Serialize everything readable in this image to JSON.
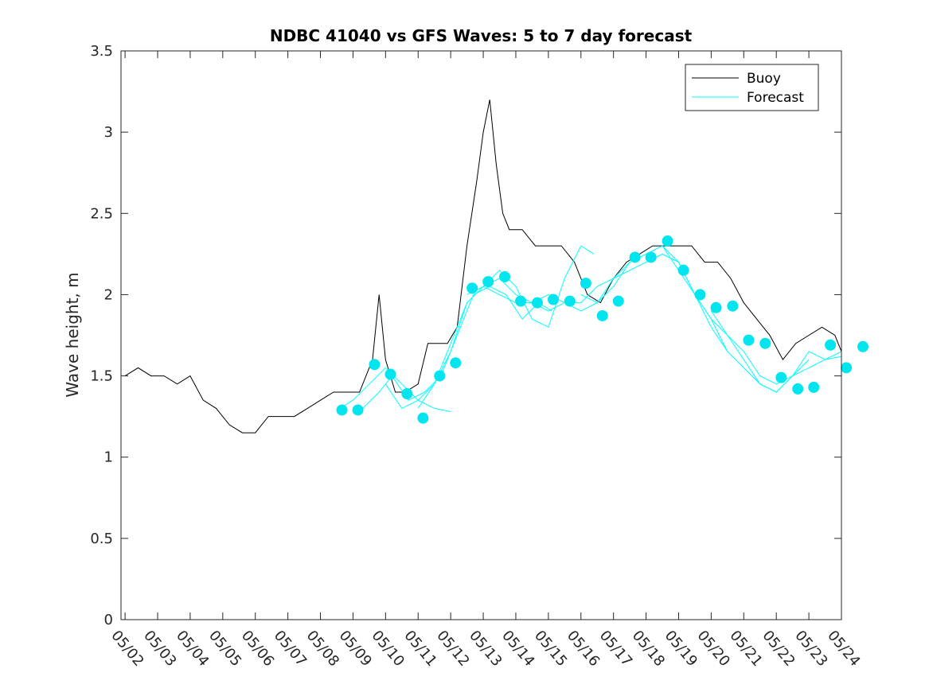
{
  "chart_data": {
    "type": "line",
    "title": "NDBC 41040 vs GFS Waves: 5 to 7 day forecast",
    "xlabel": "",
    "ylabel": "Wave height, m",
    "x_range": [
      "05/01 21:00",
      "05/24"
    ],
    "ylim": [
      0,
      3.5
    ],
    "y_ticks": [
      "0",
      "0.5",
      "1",
      "1.5",
      "2",
      "2.5",
      "3",
      "3.5"
    ],
    "x_tick_labels": [
      "05/02",
      "05/03",
      "05/04",
      "05/05",
      "05/06",
      "05/07",
      "05/08",
      "05/09",
      "05/10",
      "05/11",
      "05/12",
      "05/13",
      "05/14",
      "05/15",
      "05/16",
      "05/17",
      "05/18",
      "05/19",
      "05/20",
      "05/21",
      "05/22",
      "05/23",
      "05/24"
    ],
    "grid": false,
    "legend": {
      "position": "top-right",
      "entries": [
        "Buoy",
        "Forecast"
      ]
    },
    "colors": {
      "buoy": "#000000",
      "forecast": "#00ffff",
      "marker": "#00e5ee",
      "axis": "#262626"
    },
    "series": [
      {
        "name": "Buoy",
        "x": [
          1.0,
          1.4,
          1.8,
          2.2,
          2.6,
          3.0,
          3.4,
          3.8,
          4.2,
          4.6,
          5.0,
          5.4,
          5.8,
          6.2,
          6.6,
          7.0,
          7.4,
          7.8,
          8.2,
          8.6,
          8.8,
          9.0,
          9.3,
          9.6,
          10.0,
          10.3,
          10.6,
          10.9,
          11.2,
          11.5,
          11.8,
          12.0,
          12.2,
          12.4,
          12.6,
          12.8,
          13.2,
          13.6,
          14.0,
          14.4,
          14.8,
          15.2,
          15.6,
          16.0,
          16.4,
          16.8,
          17.2,
          17.6,
          18.0,
          18.4,
          18.8,
          19.2,
          19.6,
          20.0,
          20.4,
          20.8,
          21.2,
          21.6,
          22.0,
          22.4,
          22.8,
          23.0
        ],
        "y": [
          1.5,
          1.55,
          1.5,
          1.5,
          1.45,
          1.5,
          1.35,
          1.3,
          1.2,
          1.15,
          1.15,
          1.25,
          1.25,
          1.25,
          1.3,
          1.35,
          1.4,
          1.4,
          1.4,
          1.6,
          2.0,
          1.6,
          1.4,
          1.4,
          1.45,
          1.7,
          1.7,
          1.7,
          1.8,
          2.3,
          2.7,
          3.0,
          3.2,
          2.8,
          2.5,
          2.4,
          2.4,
          2.3,
          2.3,
          2.3,
          2.2,
          2.0,
          1.95,
          2.1,
          2.2,
          2.25,
          2.3,
          2.3,
          2.3,
          2.3,
          2.2,
          2.2,
          2.1,
          1.95,
          1.85,
          1.75,
          1.6,
          1.7,
          1.75,
          1.8,
          1.75,
          1.65
        ]
      },
      {
        "name": "Forecast",
        "x": [
          7.6,
          8.0,
          8.5,
          9.0,
          9.5,
          10.0,
          10.5,
          11.0
        ],
        "y": [
          1.3,
          1.35,
          1.45,
          1.55,
          1.45,
          1.35,
          1.3,
          1.28
        ]
      },
      {
        "x": [
          8.3,
          8.8,
          9.2,
          9.7,
          10.2,
          10.7,
          11.2,
          11.7,
          12.2,
          12.7,
          13.2,
          13.7,
          14.1
        ],
        "y": [
          1.3,
          1.4,
          1.5,
          1.35,
          1.4,
          1.5,
          1.75,
          2.0,
          2.05,
          2.0,
          1.85,
          1.95,
          1.9
        ]
      },
      {
        "x": [
          9.0,
          9.5,
          10.0,
          10.5,
          11.0,
          11.5,
          12.0,
          12.5,
          13.0,
          13.5,
          14.0,
          14.5,
          15.0,
          15.4
        ],
        "y": [
          1.45,
          1.3,
          1.35,
          1.45,
          1.7,
          1.95,
          2.05,
          2.15,
          2.05,
          1.85,
          1.8,
          2.1,
          2.3,
          2.25
        ]
      },
      {
        "x": [
          10.0,
          10.5,
          11.0,
          11.5,
          12.0,
          12.5,
          13.0,
          13.5,
          14.0,
          14.5,
          15.0,
          15.5,
          16.0,
          16.5,
          17.0,
          17.5,
          18.0
        ],
        "y": [
          1.3,
          1.45,
          1.65,
          1.95,
          2.05,
          2.0,
          1.95,
          1.95,
          2.0,
          1.95,
          1.95,
          2.05,
          2.1,
          2.15,
          2.2,
          2.25,
          2.2
        ]
      },
      {
        "x": [
          11.5,
          12.0,
          12.5,
          13.0,
          13.5,
          14.0,
          14.5,
          15.0,
          15.5,
          16.0,
          16.5,
          17.0,
          17.5,
          18.0,
          18.5,
          19.0,
          19.5
        ],
        "y": [
          2.0,
          2.05,
          2.1,
          2.0,
          1.95,
          1.9,
          1.95,
          1.9,
          1.95,
          2.05,
          2.2,
          2.25,
          2.3,
          2.2,
          2.0,
          1.8,
          1.65
        ]
      },
      {
        "x": [
          15.0,
          15.5,
          16.0,
          16.5,
          17.0,
          17.5,
          18.0,
          18.5,
          19.0,
          19.5,
          20.0,
          20.5,
          21.0,
          21.5,
          22.0
        ],
        "y": [
          2.0,
          1.95,
          2.1,
          2.2,
          2.25,
          2.3,
          2.15,
          2.0,
          1.85,
          1.65,
          1.55,
          1.45,
          1.4,
          1.5,
          1.6
        ]
      },
      {
        "x": [
          17.0,
          17.5,
          18.0,
          18.5,
          19.0,
          19.5,
          20.0,
          20.5,
          21.0,
          21.5,
          22.0,
          22.5,
          23.0
        ],
        "y": [
          2.2,
          2.25,
          2.2,
          2.0,
          1.85,
          1.75,
          1.65,
          1.5,
          1.45,
          1.5,
          1.55,
          1.6,
          1.65
        ]
      },
      {
        "x": [
          19.0,
          19.5,
          20.0,
          20.5,
          21.0,
          21.5,
          22.0,
          22.5,
          23.0
        ],
        "y": [
          1.9,
          1.75,
          1.6,
          1.45,
          1.4,
          1.5,
          1.65,
          1.6,
          1.62
        ]
      },
      {
        "x": [
          7.66,
          8.15,
          8.66,
          9.15,
          9.66,
          10.15,
          10.66,
          11.15,
          11.66,
          12.15,
          12.66,
          13.15,
          13.66,
          14.15,
          14.66,
          15.15,
          15.66,
          16.15,
          16.66,
          17.15,
          17.66,
          18.15,
          18.66,
          19.15,
          19.66,
          20.15,
          20.66,
          21.15,
          21.66,
          22.15,
          22.66,
          23.15,
          23.66
        ],
        "y": [
          1.29,
          1.29,
          1.57,
          1.51,
          1.39,
          1.24,
          1.5,
          1.58,
          2.04,
          2.08,
          2.11,
          1.96,
          1.95,
          1.97,
          1.96,
          2.07,
          1.87,
          1.96,
          2.23,
          2.23,
          2.33,
          2.15,
          2.0,
          1.92,
          1.93,
          1.72,
          1.7,
          1.49,
          1.42,
          1.43,
          1.69,
          1.55,
          1.68
        ]
      }
    ]
  }
}
